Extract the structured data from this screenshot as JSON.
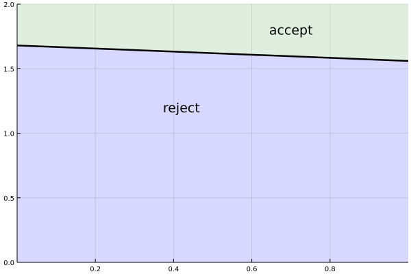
{
  "chart_data": {
    "type": "area",
    "title": "",
    "xlabel": "",
    "ylabel": "",
    "xlim": [
      0.0,
      1.0
    ],
    "ylim": [
      0.0,
      2.0
    ],
    "grid": true,
    "legend": "none",
    "x_ticks": [
      {
        "value": 0.2,
        "label": "0.2"
      },
      {
        "value": 0.4,
        "label": "0.4"
      },
      {
        "value": 0.6,
        "label": "0.6"
      },
      {
        "value": 0.8,
        "label": "0.8"
      }
    ],
    "y_ticks": [
      {
        "value": 0.0,
        "label": "0.0"
      },
      {
        "value": 0.5,
        "label": "0.5"
      },
      {
        "value": 1.0,
        "label": "1.0"
      },
      {
        "value": 1.5,
        "label": "1.5"
      },
      {
        "value": 2.0,
        "label": "2.0"
      }
    ],
    "boundary_line": {
      "x": [
        0.0,
        1.0
      ],
      "y": [
        1.68,
        1.56
      ],
      "color": "#000000"
    },
    "regions": [
      {
        "label": "accept",
        "side": "above",
        "color": "#e0eee0",
        "label_x": 0.7,
        "label_y": 1.8
      },
      {
        "label": "reject",
        "side": "below",
        "color": "#d8d8ff",
        "label_x": 0.42,
        "label_y": 1.2
      }
    ]
  }
}
